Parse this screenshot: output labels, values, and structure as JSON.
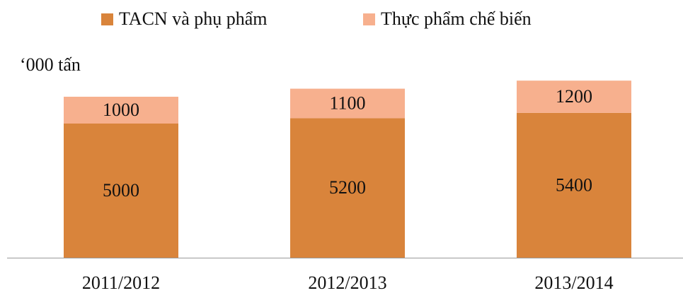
{
  "chart_data": {
    "type": "stacked_bar",
    "y_label": "‘000 tấn",
    "categories": [
      "2011/2012",
      "2012/2013",
      "2013/2014"
    ],
    "series": [
      {
        "name": "TACN và phụ phẩm",
        "color": "#d9843b",
        "values": [
          5000,
          5200,
          5400
        ]
      },
      {
        "name": "Thực phẩm chế biến",
        "color": "#f7b08e",
        "values": [
          1000,
          1100,
          1200
        ]
      }
    ],
    "ylim": [
      0,
      7000
    ],
    "legend": "top"
  }
}
